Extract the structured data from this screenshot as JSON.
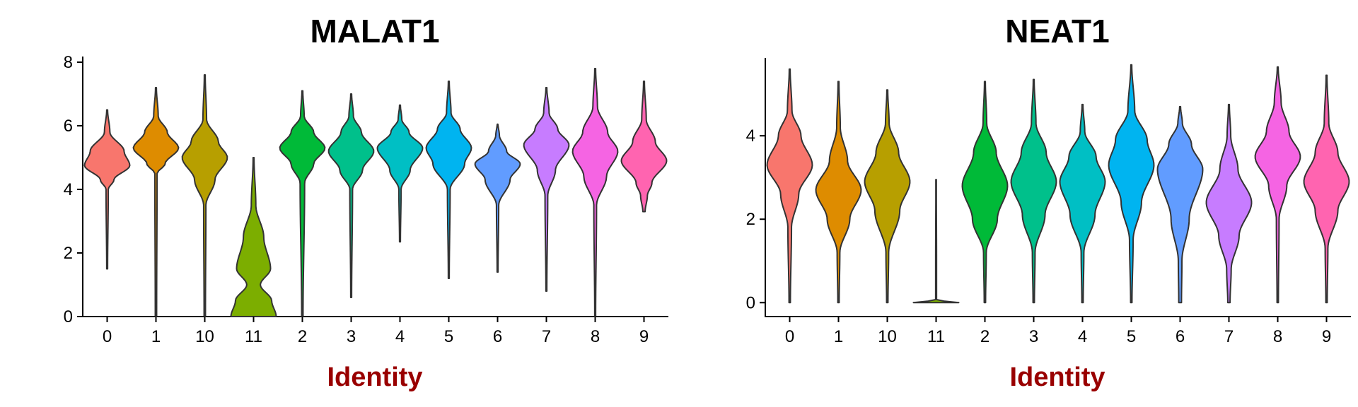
{
  "chart_data": [
    {
      "type": "violin",
      "title": "MALAT1",
      "xlabel": "Identity",
      "ylabel": "",
      "ylim": [
        0,
        8
      ],
      "yticks": [
        0,
        2,
        4,
        6,
        8
      ],
      "categories": [
        "0",
        "1",
        "10",
        "11",
        "2",
        "3",
        "4",
        "5",
        "6",
        "7",
        "8",
        "9"
      ],
      "colors": [
        "#F8766D",
        "#DE8C00",
        "#B79F00",
        "#7CAE00",
        "#00BA38",
        "#00C08B",
        "#00BFC4",
        "#00B4F0",
        "#619CFF",
        "#C77CFF",
        "#F564E3",
        "#FF64B0"
      ],
      "violins": [
        {
          "min": 1.5,
          "max": 6.5,
          "profile": [
            [
              1.5,
              0.02
            ],
            [
              4.0,
              0.05
            ],
            [
              4.3,
              0.3
            ],
            [
              4.75,
              1.0
            ],
            [
              5.2,
              0.75
            ],
            [
              5.8,
              0.12
            ],
            [
              6.5,
              0.02
            ]
          ]
        },
        {
          "min": 0,
          "max": 7.2,
          "profile": [
            [
              0,
              0.03
            ],
            [
              4.5,
              0.05
            ],
            [
              4.8,
              0.4
            ],
            [
              5.3,
              1.0
            ],
            [
              5.8,
              0.5
            ],
            [
              6.3,
              0.1
            ],
            [
              7.2,
              0.02
            ]
          ]
        },
        {
          "min": 0,
          "max": 7.6,
          "profile": [
            [
              0,
              0.03
            ],
            [
              3.5,
              0.05
            ],
            [
              4.3,
              0.45
            ],
            [
              5.0,
              1.0
            ],
            [
              5.5,
              0.6
            ],
            [
              6.2,
              0.08
            ],
            [
              7.6,
              0.02
            ]
          ]
        },
        {
          "min": 0,
          "max": 5.0,
          "profile": [
            [
              0,
              1.0
            ],
            [
              0.5,
              0.8
            ],
            [
              1.0,
              0.3
            ],
            [
              1.5,
              0.75
            ],
            [
              2.5,
              0.45
            ],
            [
              3.5,
              0.1
            ],
            [
              5.0,
              0.02
            ]
          ]
        },
        {
          "min": 0,
          "max": 7.1,
          "profile": [
            [
              0,
              0.03
            ],
            [
              4.2,
              0.1
            ],
            [
              4.8,
              0.5
            ],
            [
              5.3,
              1.0
            ],
            [
              5.8,
              0.5
            ],
            [
              6.3,
              0.08
            ],
            [
              7.1,
              0.02
            ]
          ]
        },
        {
          "min": 0.6,
          "max": 7.0,
          "profile": [
            [
              0.6,
              0.02
            ],
            [
              4.0,
              0.06
            ],
            [
              4.6,
              0.5
            ],
            [
              5.2,
              1.0
            ],
            [
              5.8,
              0.45
            ],
            [
              6.3,
              0.1
            ],
            [
              7.0,
              0.02
            ]
          ]
        },
        {
          "min": 2.35,
          "max": 6.65,
          "profile": [
            [
              2.35,
              0.02
            ],
            [
              4.0,
              0.05
            ],
            [
              4.6,
              0.45
            ],
            [
              5.3,
              1.0
            ],
            [
              5.8,
              0.4
            ],
            [
              6.2,
              0.08
            ],
            [
              6.65,
              0.02
            ]
          ]
        },
        {
          "min": 1.2,
          "max": 7.4,
          "profile": [
            [
              1.2,
              0.02
            ],
            [
              4.0,
              0.06
            ],
            [
              4.8,
              0.7
            ],
            [
              5.3,
              1.0
            ],
            [
              5.9,
              0.5
            ],
            [
              6.4,
              0.1
            ],
            [
              7.4,
              0.02
            ]
          ]
        },
        {
          "min": 1.4,
          "max": 6.05,
          "profile": [
            [
              1.4,
              0.02
            ],
            [
              3.5,
              0.05
            ],
            [
              4.3,
              0.55
            ],
            [
              4.8,
              1.0
            ],
            [
              5.2,
              0.4
            ],
            [
              5.7,
              0.08
            ],
            [
              6.05,
              0.02
            ]
          ]
        },
        {
          "min": 0.8,
          "max": 7.2,
          "profile": [
            [
              0.8,
              0.02
            ],
            [
              3.8,
              0.06
            ],
            [
              4.6,
              0.4
            ],
            [
              5.4,
              1.0
            ],
            [
              5.9,
              0.5
            ],
            [
              6.4,
              0.12
            ],
            [
              7.2,
              0.02
            ]
          ]
        },
        {
          "min": 0,
          "max": 7.8,
          "profile": [
            [
              0,
              0.02
            ],
            [
              3.5,
              0.06
            ],
            [
              4.4,
              0.5
            ],
            [
              5.2,
              1.0
            ],
            [
              5.8,
              0.55
            ],
            [
              6.6,
              0.1
            ],
            [
              7.8,
              0.02
            ]
          ]
        },
        {
          "min": 3.3,
          "max": 7.4,
          "profile": [
            [
              3.3,
              0.05
            ],
            [
              3.8,
              0.15
            ],
            [
              4.2,
              0.35
            ],
            [
              4.9,
              1.0
            ],
            [
              5.5,
              0.5
            ],
            [
              6.2,
              0.1
            ],
            [
              7.4,
              0.02
            ]
          ]
        }
      ]
    },
    {
      "type": "violin",
      "title": "NEAT1",
      "xlabel": "Identity",
      "ylabel": "",
      "ylim": [
        -0.3,
        5.9
      ],
      "yticks": [
        0,
        2,
        4
      ],
      "categories": [
        "0",
        "1",
        "10",
        "11",
        "2",
        "3",
        "4",
        "5",
        "6",
        "7",
        "8",
        "9"
      ],
      "colors": [
        "#F8766D",
        "#DE8C00",
        "#B79F00",
        "#7CAE00",
        "#00BA38",
        "#00C08B",
        "#00BFC4",
        "#00B4F0",
        "#619CFF",
        "#C77CFF",
        "#F564E3",
        "#FF64B0"
      ],
      "violins": [
        {
          "min": 0,
          "max": 5.6,
          "profile": [
            [
              0,
              0.03
            ],
            [
              1.8,
              0.08
            ],
            [
              2.6,
              0.4
            ],
            [
              3.3,
              1.0
            ],
            [
              4.0,
              0.5
            ],
            [
              4.6,
              0.1
            ],
            [
              5.6,
              0.02
            ]
          ]
        },
        {
          "min": 0,
          "max": 5.3,
          "profile": [
            [
              0,
              0.03
            ],
            [
              1.2,
              0.06
            ],
            [
              2.0,
              0.5
            ],
            [
              2.7,
              1.0
            ],
            [
              3.4,
              0.4
            ],
            [
              4.2,
              0.08
            ],
            [
              5.3,
              0.02
            ]
          ]
        },
        {
          "min": 0,
          "max": 5.1,
          "profile": [
            [
              0,
              0.03
            ],
            [
              1.2,
              0.06
            ],
            [
              2.2,
              0.55
            ],
            [
              2.9,
              1.0
            ],
            [
              3.6,
              0.5
            ],
            [
              4.3,
              0.08
            ],
            [
              5.1,
              0.02
            ]
          ]
        },
        {
          "min": 0,
          "max": 2.95,
          "profile": [
            [
              0,
              1.0
            ],
            [
              0.06,
              0.02
            ],
            [
              1.0,
              0.02
            ],
            [
              2.95,
              0.01
            ]
          ]
        },
        {
          "min": 0,
          "max": 5.3,
          "profile": [
            [
              0,
              0.03
            ],
            [
              1.2,
              0.06
            ],
            [
              2.0,
              0.55
            ],
            [
              2.8,
              1.0
            ],
            [
              3.6,
              0.5
            ],
            [
              4.3,
              0.08
            ],
            [
              5.3,
              0.02
            ]
          ]
        },
        {
          "min": 0,
          "max": 5.35,
          "profile": [
            [
              0,
              0.03
            ],
            [
              1.2,
              0.06
            ],
            [
              2.1,
              0.5
            ],
            [
              2.9,
              1.0
            ],
            [
              3.6,
              0.55
            ],
            [
              4.3,
              0.1
            ],
            [
              5.35,
              0.02
            ]
          ]
        },
        {
          "min": 0,
          "max": 4.75,
          "profile": [
            [
              0,
              0.03
            ],
            [
              1.2,
              0.06
            ],
            [
              2.1,
              0.55
            ],
            [
              2.9,
              1.0
            ],
            [
              3.5,
              0.6
            ],
            [
              4.1,
              0.1
            ],
            [
              4.75,
              0.02
            ]
          ]
        },
        {
          "min": 0,
          "max": 5.7,
          "profile": [
            [
              0,
              0.03
            ],
            [
              1.5,
              0.08
            ],
            [
              2.4,
              0.45
            ],
            [
              3.3,
              1.0
            ],
            [
              3.9,
              0.7
            ],
            [
              4.6,
              0.15
            ],
            [
              5.7,
              0.02
            ]
          ]
        },
        {
          "min": 0,
          "max": 4.7,
          "profile": [
            [
              0,
              0.06
            ],
            [
              1.0,
              0.08
            ],
            [
              2.0,
              0.4
            ],
            [
              3.2,
              1.0
            ],
            [
              3.8,
              0.5
            ],
            [
              4.3,
              0.1
            ],
            [
              4.7,
              0.02
            ]
          ]
        },
        {
          "min": 0,
          "max": 4.75,
          "profile": [
            [
              0,
              0.05
            ],
            [
              0.8,
              0.1
            ],
            [
              1.6,
              0.45
            ],
            [
              2.4,
              1.0
            ],
            [
              3.2,
              0.4
            ],
            [
              4.0,
              0.08
            ],
            [
              4.75,
              0.02
            ]
          ]
        },
        {
          "min": 0,
          "max": 5.65,
          "profile": [
            [
              0,
              0.03
            ],
            [
              2.0,
              0.06
            ],
            [
              2.8,
              0.4
            ],
            [
              3.5,
              1.0
            ],
            [
              4.1,
              0.5
            ],
            [
              4.8,
              0.15
            ],
            [
              5.65,
              0.02
            ]
          ]
        },
        {
          "min": 0,
          "max": 5.45,
          "profile": [
            [
              0,
              0.03
            ],
            [
              1.3,
              0.06
            ],
            [
              2.2,
              0.5
            ],
            [
              2.9,
              1.0
            ],
            [
              3.6,
              0.5
            ],
            [
              4.3,
              0.1
            ],
            [
              5.45,
              0.02
            ]
          ]
        }
      ]
    }
  ]
}
